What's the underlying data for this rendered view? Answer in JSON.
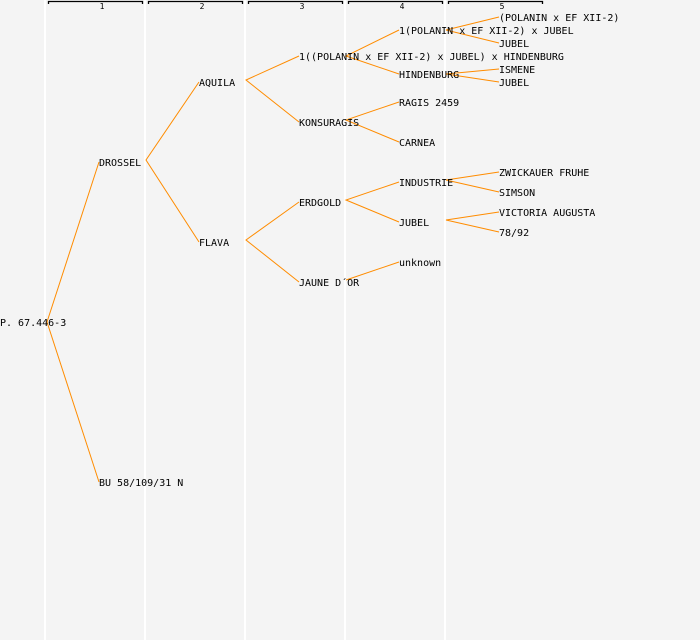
{
  "generations": [
    "1",
    "2",
    "3",
    "4",
    "5"
  ],
  "colors": {
    "line": "#ff8c00",
    "background": "#f4f4f4"
  },
  "pedigree": {
    "root": "P. 67.446-3",
    "g1": [
      "DROSSEL",
      "BU 58/109/31 N"
    ],
    "g2": [
      "AQUILA",
      "FLAVA"
    ],
    "g3": [
      "1((POLANIN x EF XII-2) x JUBEL) x HINDENBURG",
      "KONSURAGIS",
      "ERDGOLD",
      "JAUNE D´OR"
    ],
    "g4": [
      "1(POLANIN x EF XII-2) x JUBEL",
      "HINDENBURG",
      "RAGIS 2459",
      "CARNEA",
      "INDUSTRIE",
      "JUBEL",
      "unknown"
    ],
    "g5": [
      "(POLANIN x EF XII-2)",
      "JUBEL",
      "ISMENE",
      "JUBEL",
      "ZWICKAUER FRUHE",
      "SIMSON",
      "VICTORIA AUGUSTA",
      "78/92"
    ]
  }
}
